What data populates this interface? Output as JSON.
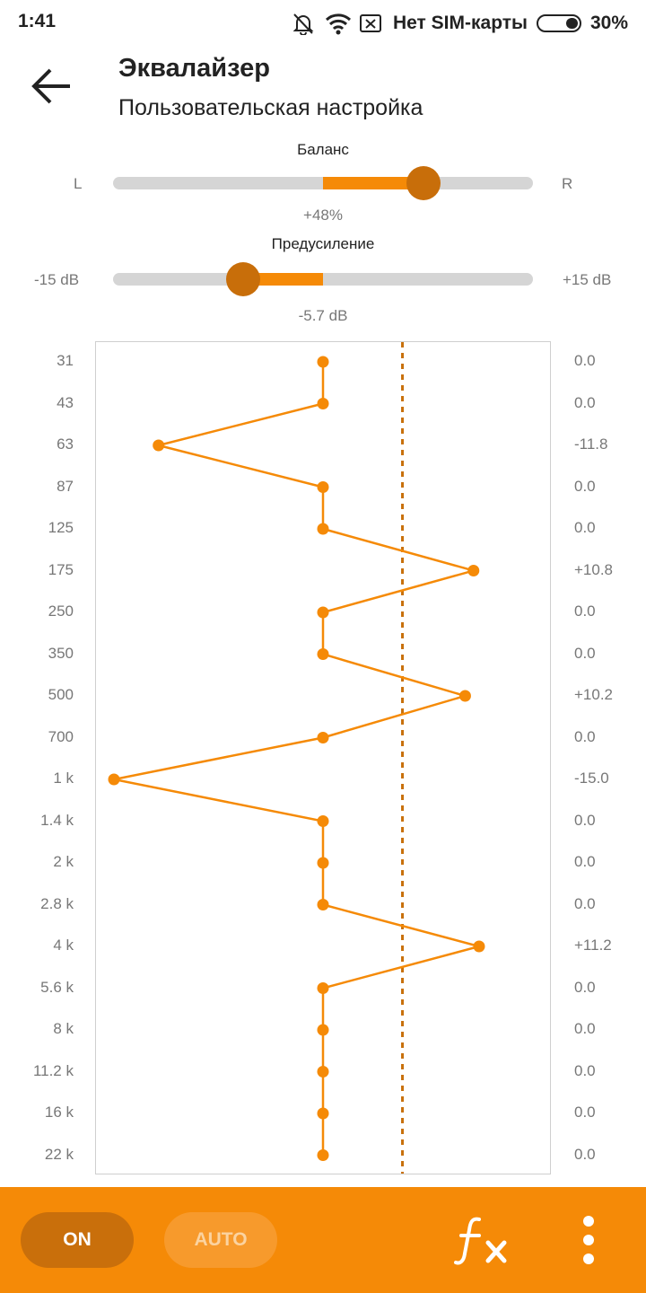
{
  "status_bar": {
    "time": "1:41",
    "carrier": "Нет SIM-карты",
    "battery": "30%",
    "battery_level": 0.3,
    "icons": [
      "bell-off-icon",
      "wifi-icon",
      "no-sim-icon",
      "battery-icon"
    ]
  },
  "header": {
    "title": "Эквалайзер",
    "subtitle": "Пользовательская настройка",
    "back_icon": "arrow-left-icon"
  },
  "balance": {
    "label": "Баланс",
    "left": "L",
    "right": "R",
    "value_text": "+48%",
    "value": 48,
    "range": [
      -100,
      100
    ]
  },
  "preamp": {
    "label": "Предусиление",
    "min_text": "-15 dB",
    "max_text": "+15 dB",
    "value_text": "-5.7 dB",
    "value": -5.7,
    "range": [
      -15,
      15
    ]
  },
  "equalizer": {
    "range": [
      -15,
      15
    ],
    "reference_line_db": 5.7,
    "bands": [
      {
        "freq": "31",
        "gain_text": "0.0",
        "gain": 0.0
      },
      {
        "freq": "43",
        "gain_text": "0.0",
        "gain": 0.0
      },
      {
        "freq": "63",
        "gain_text": "-11.8",
        "gain": -11.8
      },
      {
        "freq": "87",
        "gain_text": "0.0",
        "gain": 0.0
      },
      {
        "freq": "125",
        "gain_text": "0.0",
        "gain": 0.0
      },
      {
        "freq": "175",
        "gain_text": "+10.8",
        "gain": 10.8
      },
      {
        "freq": "250",
        "gain_text": "0.0",
        "gain": 0.0
      },
      {
        "freq": "350",
        "gain_text": "0.0",
        "gain": 0.0
      },
      {
        "freq": "500",
        "gain_text": "+10.2",
        "gain": 10.2
      },
      {
        "freq": "700",
        "gain_text": "0.0",
        "gain": 0.0
      },
      {
        "freq": "1 k",
        "gain_text": "-15.0",
        "gain": -15.0
      },
      {
        "freq": "1.4 k",
        "gain_text": "0.0",
        "gain": 0.0
      },
      {
        "freq": "2 k",
        "gain_text": "0.0",
        "gain": 0.0
      },
      {
        "freq": "2.8 k",
        "gain_text": "0.0",
        "gain": 0.0
      },
      {
        "freq": "4 k",
        "gain_text": "+11.2",
        "gain": 11.2
      },
      {
        "freq": "5.6 k",
        "gain_text": "0.0",
        "gain": 0.0
      },
      {
        "freq": "8 k",
        "gain_text": "0.0",
        "gain": 0.0
      },
      {
        "freq": "11.2 k",
        "gain_text": "0.0",
        "gain": 0.0
      },
      {
        "freq": "16 k",
        "gain_text": "0.0",
        "gain": 0.0
      },
      {
        "freq": "22 k",
        "gain_text": "0.0",
        "gain": 0.0
      }
    ]
  },
  "bottom_bar": {
    "on_label": "ON",
    "auto_label": "AUTO",
    "fx_icon": "fx-icon",
    "more_icon": "more-vertical-icon"
  },
  "colors": {
    "accent": "#f58a07",
    "accent_dark": "#c86e0a",
    "track": "#d5d5d5",
    "reference_line": "#c8700a"
  }
}
